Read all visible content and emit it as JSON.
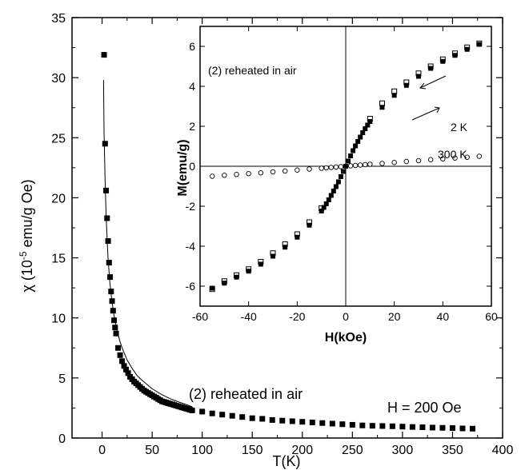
{
  "chart_data": [
    {
      "type": "scatter",
      "xlabel": "T(K)",
      "ylabel_prefix": "χ (10",
      "ylabel_exp": "-5",
      "ylabel_suffix": " emu/g Oe)",
      "xlim": [
        -30,
        400
      ],
      "ylim": [
        0,
        35
      ],
      "xticks": [
        0,
        50,
        100,
        150,
        200,
        250,
        300,
        350,
        400
      ],
      "yticks": [
        0,
        5,
        10,
        15,
        20,
        25,
        30,
        35
      ],
      "annotations": [
        "(2) reheated in air",
        "H = 200 Oe"
      ],
      "grid": false,
      "series": [
        {
          "marker": "filled-square",
          "x": [
            2,
            3,
            4,
            5,
            6,
            7,
            8,
            9,
            10,
            11,
            12,
            13,
            14,
            16,
            18,
            20,
            22,
            24,
            26,
            28,
            30,
            32,
            34,
            36,
            38,
            40,
            42,
            44,
            46,
            48,
            50,
            52,
            54,
            56,
            58,
            60,
            62,
            64,
            66,
            68,
            70,
            72,
            74,
            76,
            78,
            80,
            82,
            84,
            86,
            88,
            90,
            100,
            110,
            120,
            130,
            140,
            150,
            160,
            170,
            180,
            190,
            200,
            210,
            220,
            230,
            240,
            250,
            260,
            270,
            280,
            290,
            300,
            310,
            320,
            330,
            340,
            350,
            360,
            370
          ],
          "y": [
            31.9,
            24.5,
            20.6,
            18.3,
            16.4,
            14.6,
            13.4,
            12.2,
            11.4,
            10.6,
            9.8,
            9.2,
            8.7,
            7.5,
            6.9,
            6.4,
            6.0,
            5.7,
            5.4,
            5.1,
            4.9,
            4.7,
            4.55,
            4.4,
            4.25,
            4.1,
            3.95,
            3.85,
            3.75,
            3.65,
            3.55,
            3.45,
            3.35,
            3.25,
            3.15,
            3.05,
            3.0,
            2.95,
            2.9,
            2.85,
            2.8,
            2.75,
            2.7,
            2.65,
            2.6,
            2.55,
            2.5,
            2.45,
            2.4,
            2.35,
            2.3,
            2.2,
            2.05,
            1.95,
            1.85,
            1.75,
            1.65,
            1.6,
            1.5,
            1.45,
            1.4,
            1.35,
            1.3,
            1.25,
            1.2,
            1.15,
            1.1,
            1.05,
            1.02,
            1.0,
            0.98,
            0.95,
            0.92,
            0.9,
            0.87,
            0.85,
            0.83,
            0.8,
            0.78
          ]
        },
        {
          "marker": "line",
          "x": [
            1.5,
            2,
            3,
            4,
            5,
            6,
            7,
            8,
            10,
            12,
            14,
            16,
            18,
            20,
            25,
            30,
            35,
            40,
            50,
            60,
            70,
            80,
            90
          ],
          "y": [
            29.8,
            25.5,
            21.5,
            18.7,
            16.6,
            15.0,
            13.8,
            12.8,
            11.3,
            10.2,
            9.3,
            8.6,
            8.0,
            7.5,
            6.5,
            5.8,
            5.2,
            4.8,
            4.1,
            3.6,
            3.2,
            2.9,
            2.6
          ]
        }
      ]
    },
    {
      "type": "scatter",
      "xlabel": "H(kOe)",
      "ylabel": "M(emu/g)",
      "xlim": [
        -60,
        60
      ],
      "ylim": [
        -7,
        7
      ],
      "xticks": [
        -60,
        -40,
        -20,
        0,
        20,
        40,
        60
      ],
      "yticks": [
        -6,
        -4,
        -2,
        0,
        2,
        4,
        6
      ],
      "annotations": [
        "(2) reheated in air",
        "2 K",
        "300 K"
      ],
      "grid": false,
      "series": [
        {
          "marker": "filled-square",
          "x": [
            0,
            1,
            2,
            3,
            4,
            5,
            6,
            7,
            8,
            9,
            10,
            15,
            20,
            25,
            30,
            35,
            40,
            45,
            50,
            55,
            -1,
            -2,
            -3,
            -4,
            -5,
            -6,
            -7,
            -8,
            -9,
            -10,
            -15,
            -20,
            -25,
            -30,
            -35,
            -40,
            -45,
            -50,
            -55
          ],
          "y": [
            0.0,
            0.26,
            0.52,
            0.78,
            1.02,
            1.24,
            1.46,
            1.68,
            1.88,
            2.06,
            2.24,
            2.95,
            3.55,
            4.05,
            4.5,
            4.9,
            5.25,
            5.55,
            5.85,
            6.1,
            -0.26,
            -0.52,
            -0.78,
            -1.02,
            -1.24,
            -1.46,
            -1.68,
            -1.88,
            -2.06,
            -2.24,
            -2.95,
            -3.55,
            -4.05,
            -4.5,
            -4.9,
            -5.25,
            -5.55,
            -5.85,
            -6.1
          ]
        },
        {
          "marker": "open-square",
          "x": [
            10,
            15,
            20,
            25,
            30,
            35,
            40,
            45,
            50,
            55,
            -10,
            -15,
            -20,
            -25,
            -30,
            -35,
            -40,
            -45,
            -50,
            -55
          ],
          "y": [
            2.38,
            3.15,
            3.75,
            4.2,
            4.65,
            5.0,
            5.35,
            5.65,
            5.95,
            6.15,
            -2.1,
            -2.8,
            -3.4,
            -3.9,
            -4.35,
            -4.78,
            -5.15,
            -5.45,
            -5.75,
            -6.15
          ]
        },
        {
          "marker": "open-circle",
          "x": [
            -55,
            -50,
            -45,
            -40,
            -35,
            -30,
            -25,
            -20,
            -15,
            -10,
            -8,
            -6,
            -4,
            -2,
            0,
            2,
            4,
            6,
            8,
            10,
            15,
            20,
            25,
            30,
            35,
            40,
            45,
            50,
            55
          ],
          "y": [
            -0.5,
            -0.45,
            -0.41,
            -0.37,
            -0.33,
            -0.28,
            -0.24,
            -0.19,
            -0.14,
            -0.1,
            -0.08,
            -0.06,
            -0.04,
            -0.02,
            0.0,
            0.02,
            0.04,
            0.06,
            0.08,
            0.1,
            0.14,
            0.19,
            0.24,
            0.28,
            0.33,
            0.37,
            0.41,
            0.45,
            0.5
          ]
        }
      ]
    }
  ]
}
